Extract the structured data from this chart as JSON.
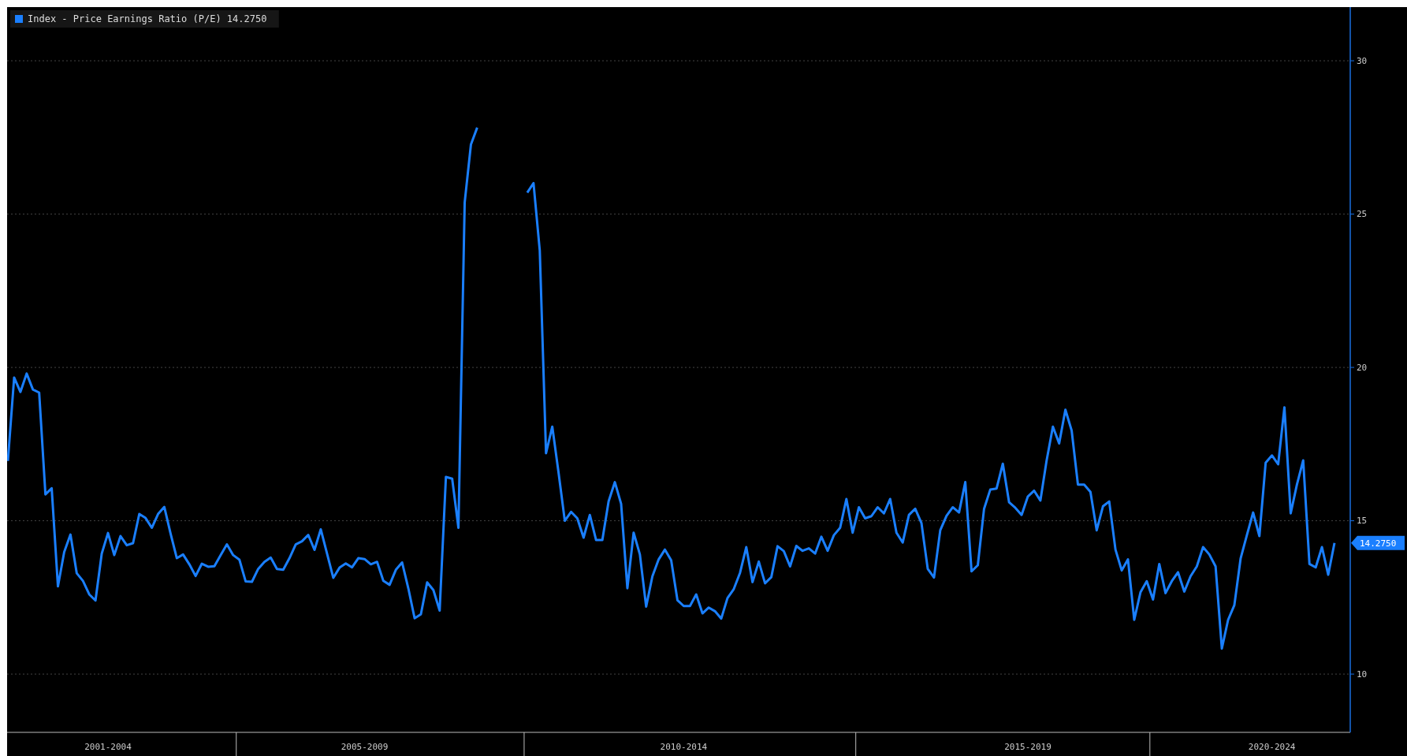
{
  "chart_data": {
    "type": "line",
    "legend": "top left",
    "grid": "y",
    "ylim": [
      8.1,
      31.75
    ],
    "categories": [
      null,
      null,
      null,
      null,
      null,
      null,
      null,
      null,
      null,
      null,
      null,
      null,
      null,
      null,
      null,
      null,
      "2001-2004",
      null,
      null,
      null,
      null,
      null,
      null,
      null,
      null,
      null,
      null,
      null,
      null,
      null,
      null,
      null,
      null,
      null,
      null,
      null,
      null,
      null,
      null,
      null,
      null,
      null,
      null,
      null,
      null,
      null,
      null,
      null,
      null,
      null,
      null,
      null,
      null,
      null,
      null,
      null,
      null,
      "2005-2009",
      null,
      null,
      null,
      null,
      null,
      null,
      null,
      null,
      null,
      null,
      null,
      null,
      null,
      null,
      null,
      null,
      null,
      null,
      null,
      null,
      null,
      null,
      null,
      null,
      null,
      null,
      null,
      null,
      null,
      null,
      null,
      null,
      null,
      null,
      null,
      null,
      null,
      null,
      null,
      null,
      null,
      null,
      null,
      null,
      null,
      null,
      null,
      null,
      null,
      null,
      "2010-2014",
      null,
      null,
      null,
      null,
      null,
      null,
      null,
      null,
      null,
      null,
      null,
      null,
      null,
      null,
      null,
      null,
      null,
      null,
      null,
      null,
      null,
      null,
      null,
      null,
      null,
      null,
      null,
      null,
      null,
      null,
      null,
      null,
      null,
      null,
      null,
      null,
      null,
      null,
      null,
      null,
      null,
      null,
      null,
      null,
      null,
      null,
      null,
      null,
      null,
      null,
      null,
      null,
      null,
      null,
      "2015-2019",
      null,
      null,
      null,
      null,
      null,
      null,
      null,
      null,
      null,
      null,
      null,
      null,
      null,
      null,
      null,
      null,
      null,
      null,
      null,
      null,
      null,
      null,
      null,
      null,
      null,
      null,
      null,
      null,
      null,
      null,
      null,
      null,
      null,
      null,
      null,
      null,
      null,
      null,
      "2020-2024",
      null,
      null,
      null,
      null,
      null,
      null,
      null,
      null,
      null,
      null
    ],
    "yticks": [
      10,
      15,
      20,
      25,
      30
    ],
    "annotations": [
      "14.2750"
    ],
    "series": [
      {
        "name": "Index - Price Earnings Ratio (P/E) 14.2750",
        "color": "#1a7fff",
        "values": [
          16.95,
          19.67,
          19.2,
          19.8,
          19.28,
          19.18,
          15.86,
          16.06,
          12.86,
          13.98,
          14.55,
          13.29,
          13.04,
          12.6,
          12.4,
          13.93,
          14.6,
          13.88,
          14.5,
          14.2,
          14.27,
          15.22,
          15.09,
          14.77,
          15.22,
          15.45,
          14.58,
          13.78,
          13.9,
          13.58,
          13.2,
          13.6,
          13.5,
          13.52,
          13.88,
          14.23,
          13.88,
          13.73,
          13.02,
          13.01,
          13.43,
          13.66,
          13.8,
          13.43,
          13.4,
          13.78,
          14.23,
          14.33,
          14.54,
          14.05,
          14.72,
          13.93,
          13.14,
          13.47,
          13.61,
          13.48,
          13.78,
          13.75,
          13.58,
          13.66,
          13.04,
          12.91,
          13.4,
          13.64,
          12.79,
          11.82,
          11.95,
          12.99,
          12.74,
          12.07,
          16.43,
          16.37,
          14.77,
          25.38,
          27.27,
          27.82,
          null,
          null,
          null,
          null,
          null,
          null,
          null,
          25.7,
          26.01,
          23.81,
          17.2,
          18.07,
          16.57,
          15.0,
          15.29,
          15.08,
          14.45,
          15.19,
          14.37,
          14.37,
          15.63,
          16.26,
          15.55,
          12.8,
          14.61,
          13.9,
          12.2,
          13.19,
          13.74,
          14.06,
          13.71,
          12.41,
          12.22,
          12.22,
          12.6,
          11.98,
          12.17,
          12.05,
          11.81,
          12.48,
          12.77,
          13.3,
          14.14,
          13.0,
          13.67,
          12.96,
          13.16,
          14.17,
          14.01,
          13.51,
          14.18,
          14.02,
          14.1,
          13.93,
          14.48,
          14.02,
          14.53,
          14.77,
          15.71,
          14.61,
          15.44,
          15.08,
          15.15,
          15.44,
          15.24,
          15.71,
          14.61,
          14.29,
          15.19,
          15.39,
          14.92,
          13.43,
          13.15,
          14.69,
          15.16,
          15.44,
          15.27,
          16.26,
          13.35,
          13.55,
          15.39,
          16.02,
          16.05,
          16.86,
          15.6,
          15.42,
          15.19,
          15.79,
          15.98,
          15.66,
          16.97,
          18.07,
          17.52,
          18.62,
          17.94,
          16.18,
          16.18,
          15.94,
          14.69,
          15.47,
          15.63,
          14.06,
          13.38,
          13.74,
          11.77,
          12.67,
          13.03,
          12.43,
          13.59,
          12.64,
          13.03,
          13.32,
          12.69,
          13.19,
          13.51,
          14.14,
          13.9,
          13.51,
          10.83,
          11.77,
          12.25,
          13.77,
          14.53,
          15.27,
          14.5,
          16.89,
          17.13,
          16.84,
          18.7,
          15.24,
          16.18,
          16.97,
          13.59,
          13.48,
          14.14,
          13.24,
          14.275
        ]
      }
    ]
  }
}
